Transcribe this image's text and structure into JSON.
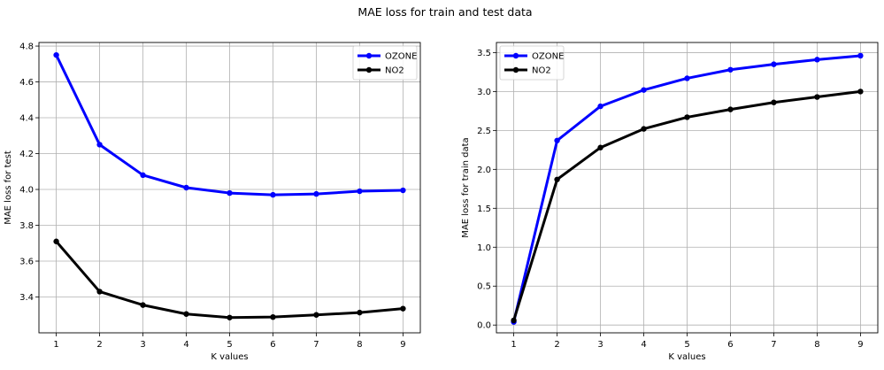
{
  "figure": {
    "suptitle": "MAE loss for train and test data"
  },
  "colors": {
    "ozone": "#0000ff",
    "no2": "#000000",
    "grid": "#b0b0b0",
    "axes": "#000000",
    "background": "#ffffff"
  },
  "chart_data": [
    {
      "type": "line",
      "title": "",
      "xlabel": "K values",
      "ylabel": "MAE loss for test",
      "x": [
        1,
        2,
        3,
        4,
        5,
        6,
        7,
        8,
        9
      ],
      "xticks": [
        1,
        2,
        3,
        4,
        5,
        6,
        7,
        8,
        9
      ],
      "xlim": [
        0.6,
        9.4
      ],
      "yticks": [
        3.4,
        3.6,
        3.8,
        4.0,
        4.2,
        4.4,
        4.6,
        4.8
      ],
      "ylim": [
        3.2,
        4.82
      ],
      "grid": true,
      "legend_position": "upper right",
      "series": [
        {
          "name": "OZONE",
          "color_key": "ozone",
          "values": [
            4.75,
            4.25,
            4.08,
            4.01,
            3.98,
            3.97,
            3.975,
            3.99,
            3.995
          ]
        },
        {
          "name": "NO2",
          "color_key": "no2",
          "values": [
            3.71,
            3.43,
            3.355,
            3.305,
            3.285,
            3.288,
            3.3,
            3.313,
            3.335
          ]
        }
      ]
    },
    {
      "type": "line",
      "title": "",
      "xlabel": "K values",
      "ylabel": "MAE loss for train data",
      "x": [
        1,
        2,
        3,
        4,
        5,
        6,
        7,
        8,
        9
      ],
      "xticks": [
        1,
        2,
        3,
        4,
        5,
        6,
        7,
        8,
        9
      ],
      "xlim": [
        0.6,
        9.4
      ],
      "yticks": [
        0.0,
        0.5,
        1.0,
        1.5,
        2.0,
        2.5,
        3.0,
        3.5
      ],
      "ylim": [
        -0.1,
        3.63
      ],
      "grid": true,
      "legend_position": "upper left",
      "series": [
        {
          "name": "OZONE",
          "color_key": "ozone",
          "values": [
            0.04,
            2.37,
            2.81,
            3.02,
            3.17,
            3.28,
            3.35,
            3.41,
            3.46
          ]
        },
        {
          "name": "NO2",
          "color_key": "no2",
          "values": [
            0.06,
            1.87,
            2.28,
            2.52,
            2.67,
            2.77,
            2.86,
            2.93,
            3.0
          ]
        }
      ]
    }
  ]
}
